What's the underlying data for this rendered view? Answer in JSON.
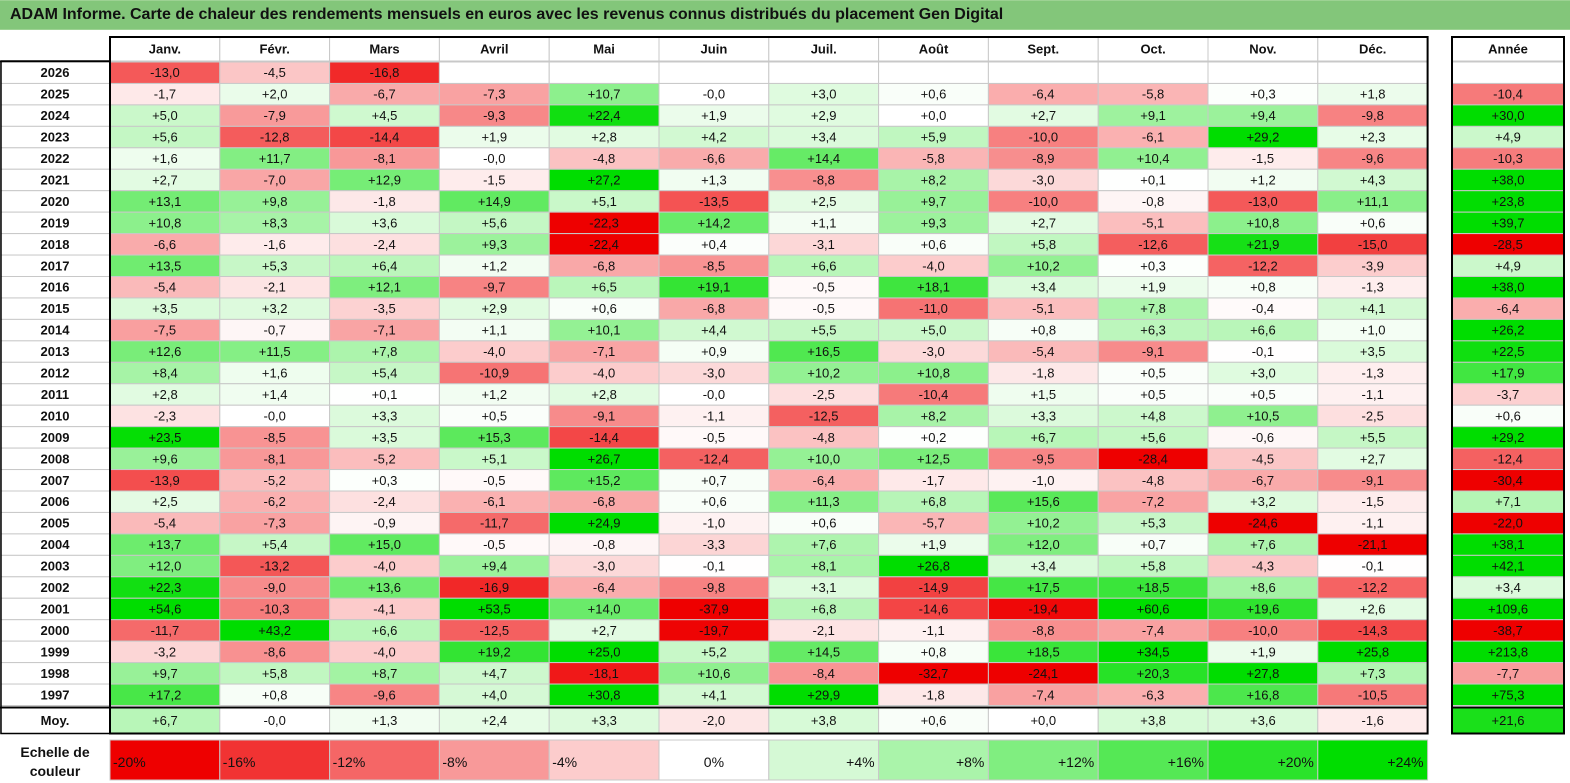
{
  "title": "ADAM Informe. Carte de chaleur des rendements mensuels en euros avec les revenus connus distribués du placement Gen Digital",
  "colors": {
    "title_bar": "#83c67a",
    "strong_green": "#00dd00",
    "strong_red": "#ee0000",
    "neutral": "#ffffff"
  },
  "chart_data": {
    "type": "heatmap",
    "title": "ADAM Informe. Carte de chaleur des rendements mensuels en euros avec les revenus connus distribués du placement Gen Digital",
    "columns": [
      "Janv.",
      "Févr.",
      "Mars",
      "Avril",
      "Mai",
      "Juin",
      "Juil.",
      "Août",
      "Sept.",
      "Oct.",
      "Nov.",
      "Déc."
    ],
    "year_column": "Année",
    "rows": [
      {
        "label": "2026",
        "values": [
          "-13,0",
          "-4,5",
          "-16,8",
          "",
          "",
          "",
          "",
          "",
          "",
          "",
          "",
          ""
        ],
        "year": ""
      },
      {
        "label": "2025",
        "values": [
          "-1,7",
          "+2,0",
          "-6,7",
          "-7,3",
          "+10,7",
          "-0,0",
          "+3,0",
          "+0,6",
          "-6,4",
          "-5,8",
          "+0,3",
          "+1,8"
        ],
        "year": "-10,4"
      },
      {
        "label": "2024",
        "values": [
          "+5,0",
          "-7,9",
          "+4,5",
          "-9,3",
          "+22,4",
          "+1,9",
          "+2,9",
          "+0,0",
          "+2,7",
          "+9,1",
          "+9,4",
          "-9,8"
        ],
        "year": "+30,0"
      },
      {
        "label": "2023",
        "values": [
          "+5,6",
          "-12,8",
          "-14,4",
          "+1,9",
          "+2,8",
          "+4,2",
          "+3,4",
          "+5,9",
          "-10,0",
          "-6,1",
          "+29,2",
          "+2,3"
        ],
        "year": "+4,9"
      },
      {
        "label": "2022",
        "values": [
          "+1,6",
          "+11,7",
          "-8,1",
          "-0,0",
          "-4,8",
          "-6,6",
          "+14,4",
          "-5,8",
          "-8,9",
          "+10,4",
          "-1,5",
          "-9,6"
        ],
        "year": "-10,3"
      },
      {
        "label": "2021",
        "values": [
          "+2,7",
          "-7,0",
          "+12,9",
          "-1,5",
          "+27,2",
          "+1,3",
          "-8,8",
          "+8,2",
          "-3,0",
          "+0,1",
          "+1,2",
          "+4,3"
        ],
        "year": "+38,0"
      },
      {
        "label": "2020",
        "values": [
          "+13,1",
          "+9,8",
          "-1,8",
          "+14,9",
          "+5,1",
          "-13,5",
          "+2,5",
          "+9,7",
          "-10,0",
          "-0,8",
          "-13,0",
          "+11,1"
        ],
        "year": "+23,8"
      },
      {
        "label": "2019",
        "values": [
          "+10,8",
          "+8,3",
          "+3,6",
          "+5,6",
          "-22,3",
          "+14,2",
          "+1,1",
          "+9,3",
          "+2,7",
          "-5,1",
          "+10,8",
          "+0,6"
        ],
        "year": "+39,7"
      },
      {
        "label": "2018",
        "values": [
          "-6,6",
          "-1,6",
          "-2,4",
          "+9,3",
          "-22,4",
          "+0,4",
          "-3,1",
          "+0,6",
          "+5,8",
          "-12,6",
          "+21,9",
          "-15,0"
        ],
        "year": "-28,5"
      },
      {
        "label": "2017",
        "values": [
          "+13,5",
          "+5,3",
          "+6,4",
          "+1,2",
          "-6,8",
          "-8,5",
          "+6,6",
          "-4,0",
          "+10,2",
          "+0,3",
          "-12,2",
          "-3,9"
        ],
        "year": "+4,9"
      },
      {
        "label": "2016",
        "values": [
          "-5,4",
          "-2,1",
          "+12,1",
          "-9,7",
          "+6,5",
          "+19,1",
          "-0,5",
          "+18,1",
          "+3,4",
          "+1,9",
          "+0,8",
          "-1,3"
        ],
        "year": "+38,0"
      },
      {
        "label": "2015",
        "values": [
          "+3,5",
          "+3,2",
          "-3,5",
          "+2,9",
          "+0,6",
          "-6,8",
          "-0,5",
          "-11,0",
          "-5,1",
          "+7,8",
          "-0,4",
          "+4,1"
        ],
        "year": "-6,4"
      },
      {
        "label": "2014",
        "values": [
          "-7,5",
          "-0,7",
          "-7,1",
          "+1,1",
          "+10,1",
          "+4,4",
          "+5,5",
          "+5,0",
          "+0,8",
          "+6,3",
          "+6,6",
          "+1,0"
        ],
        "year": "+26,2"
      },
      {
        "label": "2013",
        "values": [
          "+12,6",
          "+11,5",
          "+7,8",
          "-4,0",
          "-7,1",
          "+0,9",
          "+16,5",
          "-3,0",
          "-5,4",
          "-9,1",
          "-0,1",
          "+3,5"
        ],
        "year": "+22,5"
      },
      {
        "label": "2012",
        "values": [
          "+8,4",
          "+1,6",
          "+5,4",
          "-10,9",
          "-4,0",
          "-3,0",
          "+10,2",
          "+10,8",
          "-1,8",
          "+0,5",
          "+3,0",
          "-1,3"
        ],
        "year": "+17,9"
      },
      {
        "label": "2011",
        "values": [
          "+2,8",
          "+1,4",
          "+0,1",
          "+1,2",
          "+2,8",
          "-0,0",
          "-2,5",
          "-10,4",
          "+1,5",
          "+0,5",
          "+0,5",
          "-1,1"
        ],
        "year": "-3,7"
      },
      {
        "label": "2010",
        "values": [
          "-2,3",
          "-0,0",
          "+3,3",
          "+0,5",
          "-9,1",
          "-1,1",
          "-12,5",
          "+8,2",
          "+3,3",
          "+4,8",
          "+10,5",
          "-2,5"
        ],
        "year": "+0,6"
      },
      {
        "label": "2009",
        "values": [
          "+23,5",
          "-8,5",
          "+3,5",
          "+15,3",
          "-14,4",
          "-0,5",
          "-4,8",
          "+0,2",
          "+6,7",
          "+5,6",
          "-0,6",
          "+5,5"
        ],
        "year": "+29,2"
      },
      {
        "label": "2008",
        "values": [
          "+9,6",
          "-8,1",
          "-5,2",
          "+5,1",
          "+26,7",
          "-12,4",
          "+10,0",
          "+12,5",
          "-9,5",
          "-28,4",
          "-4,5",
          "+2,7"
        ],
        "year": "-12,4"
      },
      {
        "label": "2007",
        "values": [
          "-13,9",
          "-5,2",
          "+0,3",
          "-0,5",
          "+15,2",
          "+0,7",
          "-6,4",
          "-1,7",
          "-1,0",
          "-4,8",
          "-6,7",
          "-9,1"
        ],
        "year": "-30,4"
      },
      {
        "label": "2006",
        "values": [
          "+2,5",
          "-6,2",
          "-2,4",
          "-6,1",
          "-6,8",
          "+0,6",
          "+11,3",
          "+6,8",
          "+15,6",
          "-7,2",
          "+3,2",
          "-1,5"
        ],
        "year": "+7,1"
      },
      {
        "label": "2005",
        "values": [
          "-5,4",
          "-7,3",
          "-0,9",
          "-11,7",
          "+24,9",
          "-1,0",
          "+0,6",
          "-5,7",
          "+10,2",
          "+5,3",
          "-24,6",
          "-1,1"
        ],
        "year": "-22,0"
      },
      {
        "label": "2004",
        "values": [
          "+13,7",
          "+5,4",
          "+15,0",
          "-0,5",
          "-0,8",
          "-3,3",
          "+7,6",
          "+1,9",
          "+12,0",
          "+0,7",
          "+7,6",
          "-21,1"
        ],
        "year": "+38,1"
      },
      {
        "label": "2003",
        "values": [
          "+12,0",
          "-13,2",
          "-4,0",
          "+9,4",
          "-3,0",
          "-0,1",
          "+8,1",
          "+26,8",
          "+3,4",
          "+5,8",
          "-4,3",
          "-0,1"
        ],
        "year": "+42,1"
      },
      {
        "label": "2002",
        "values": [
          "+22,3",
          "-9,0",
          "+13,6",
          "-16,9",
          "-6,4",
          "-9,8",
          "+3,1",
          "-14,9",
          "+17,5",
          "+18,5",
          "+8,6",
          "-12,2"
        ],
        "year": "+3,4"
      },
      {
        "label": "2001",
        "values": [
          "+54,6",
          "-10,3",
          "-4,1",
          "+53,5",
          "+14,0",
          "-37,9",
          "+6,8",
          "-14,6",
          "-19,4",
          "+60,6",
          "+19,6",
          "+2,6"
        ],
        "year": "+109,6"
      },
      {
        "label": "2000",
        "values": [
          "-11,7",
          "+43,2",
          "+6,6",
          "-12,5",
          "+2,7",
          "-19,7",
          "-2,1",
          "-1,1",
          "-8,8",
          "-7,4",
          "-10,0",
          "-14,3"
        ],
        "year": "-38,7"
      },
      {
        "label": "1999",
        "values": [
          "-3,2",
          "-8,6",
          "-4,0",
          "+19,2",
          "+25,0",
          "+5,2",
          "+14,5",
          "+0,8",
          "+18,5",
          "+34,5",
          "+1,9",
          "+25,8"
        ],
        "year": "+213,8"
      },
      {
        "label": "1998",
        "values": [
          "+9,7",
          "+5,8",
          "+8,7",
          "+4,7",
          "-18,1",
          "+10,6",
          "-8,4",
          "-32,7",
          "-24,1",
          "+20,3",
          "+27,8",
          "+7,3"
        ],
        "year": "-7,7"
      },
      {
        "label": "1997",
        "values": [
          "+17,2",
          "+0,8",
          "-9,6",
          "+4,0",
          "+30,8",
          "+4,1",
          "+29,9",
          "-1,8",
          "-7,4",
          "-6,3",
          "+16,8",
          "-10,5"
        ],
        "year": "+75,3"
      }
    ],
    "average_row": {
      "label": "Moy.",
      "values": [
        "+6,7",
        "-0,0",
        "+1,3",
        "+2,4",
        "+3,3",
        "-2,0",
        "+3,8",
        "+0,6",
        "+0,0",
        "+3,8",
        "+3,6",
        "-1,6"
      ],
      "year": "+21,6"
    },
    "scale": {
      "label_line1": "Echelle de",
      "label_line2": "couleur",
      "steps": [
        {
          "label": "-20%",
          "value": -20
        },
        {
          "label": "-16%",
          "value": -16
        },
        {
          "label": "-12%",
          "value": -12
        },
        {
          "label": "-8%",
          "value": -8
        },
        {
          "label": "-4%",
          "value": -4
        },
        {
          "label": "0%",
          "value": 0
        },
        {
          "label": "+4%",
          "value": 4
        },
        {
          "label": "+8%",
          "value": 8
        },
        {
          "label": "+12%",
          "value": 12
        },
        {
          "label": "+16%",
          "value": 16
        },
        {
          "label": "+20%",
          "value": 20
        },
        {
          "label": "+24%",
          "value": 24
        }
      ]
    },
    "color_range": {
      "min": -20,
      "max": 24
    }
  }
}
